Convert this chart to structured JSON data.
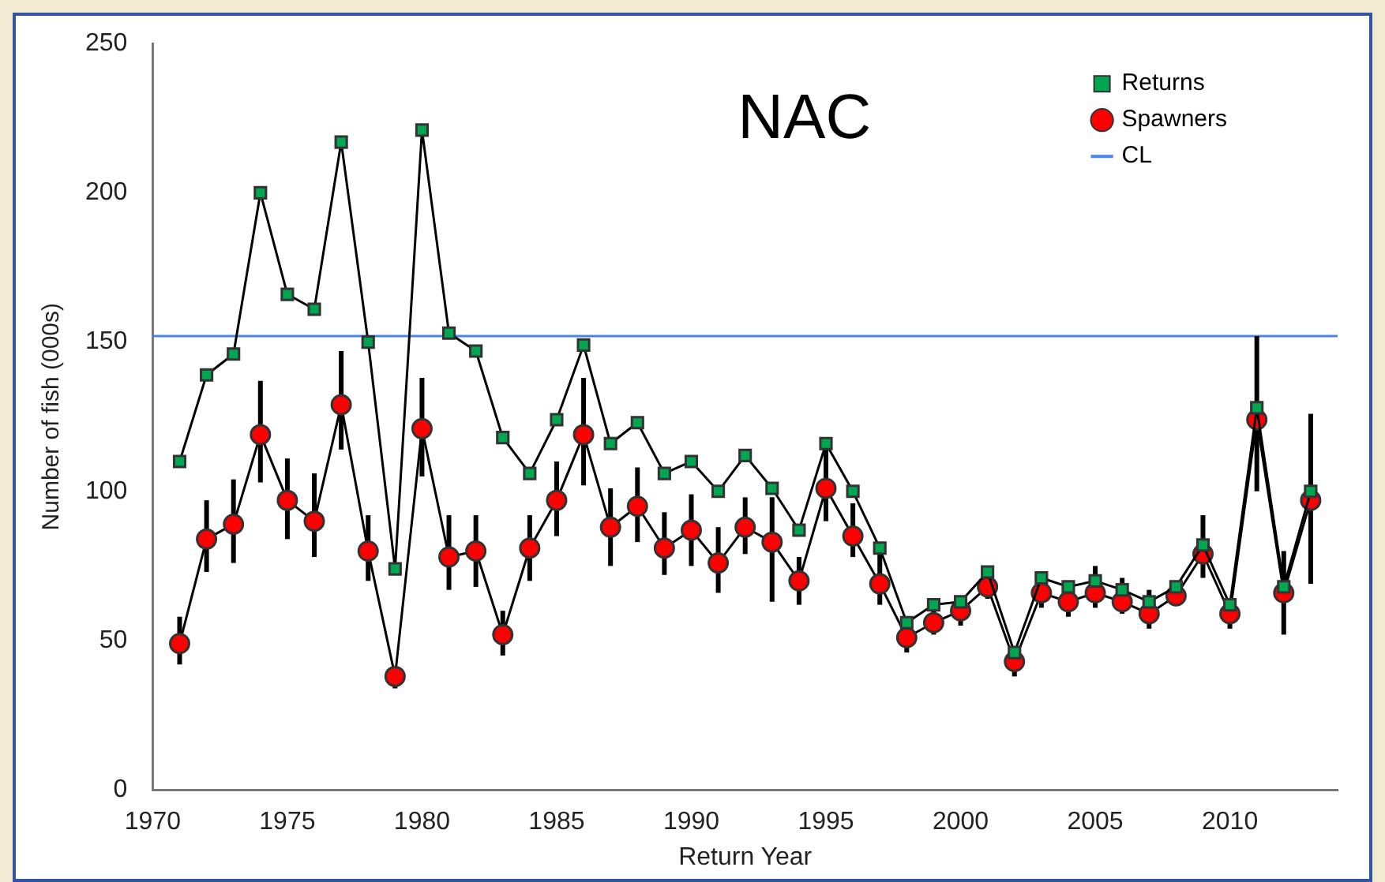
{
  "chart_data": {
    "type": "line",
    "xlabel": "Return Year",
    "ylabel": "Number of fish (000s)",
    "annotations": [
      "NAC"
    ],
    "x": [
      1971,
      1972,
      1973,
      1974,
      1975,
      1976,
      1977,
      1978,
      1979,
      1980,
      1981,
      1982,
      1983,
      1984,
      1985,
      1986,
      1987,
      1988,
      1989,
      1990,
      1991,
      1992,
      1993,
      1994,
      1995,
      1996,
      1997,
      1998,
      1999,
      2000,
      2001,
      2002,
      2003,
      2004,
      2005,
      2006,
      2007,
      2008,
      2009,
      2010,
      2011,
      2012,
      2013
    ],
    "series": [
      {
        "name": "Returns",
        "color": "#00a650",
        "marker": "square",
        "values": [
          110,
          139,
          146,
          200,
          166,
          161,
          217,
          150,
          74,
          221,
          153,
          147,
          118,
          106,
          124,
          149,
          116,
          123,
          106,
          110,
          100,
          112,
          101,
          87,
          116,
          100,
          81,
          56,
          62,
          63,
          73,
          46,
          71,
          68,
          70,
          67,
          63,
          68,
          82,
          62,
          128,
          68,
          100
        ]
      },
      {
        "name": "Spawners",
        "color": "#ff0000",
        "marker": "circle",
        "values": [
          49,
          84,
          89,
          119,
          97,
          90,
          129,
          80,
          38,
          121,
          78,
          80,
          52,
          81,
          97,
          119,
          88,
          95,
          81,
          87,
          76,
          88,
          83,
          70,
          101,
          85,
          69,
          51,
          56,
          60,
          68,
          43,
          66,
          63,
          66,
          63,
          59,
          65,
          79,
          59,
          124,
          66,
          97
        ],
        "errors": [
          [
            42,
            58
          ],
          [
            73,
            97
          ],
          [
            76,
            104
          ],
          [
            103,
            137
          ],
          [
            84,
            111
          ],
          [
            78,
            106
          ],
          [
            114,
            147
          ],
          [
            70,
            92
          ],
          [
            34,
            41
          ],
          [
            105,
            138
          ],
          [
            67,
            92
          ],
          [
            68,
            92
          ],
          [
            45,
            60
          ],
          [
            70,
            92
          ],
          [
            85,
            110
          ],
          [
            102,
            138
          ],
          [
            75,
            101
          ],
          [
            83,
            108
          ],
          [
            72,
            93
          ],
          [
            75,
            99
          ],
          [
            66,
            88
          ],
          [
            79,
            98
          ],
          [
            63,
            98
          ],
          [
            62,
            78
          ],
          [
            90,
            115
          ],
          [
            78,
            96
          ],
          [
            62,
            79
          ],
          [
            46,
            56
          ],
          [
            52,
            62
          ],
          [
            55,
            64
          ],
          [
            64,
            73
          ],
          [
            38,
            47
          ],
          [
            61,
            71
          ],
          [
            58,
            68
          ],
          [
            61,
            75
          ],
          [
            59,
            71
          ],
          [
            54,
            67
          ],
          [
            62,
            70
          ],
          [
            71,
            92
          ],
          [
            54,
            64
          ],
          [
            100,
            152
          ],
          [
            52,
            80
          ],
          [
            69,
            126
          ]
        ]
      }
    ],
    "ref_lines": [
      {
        "axis": "y",
        "value": 152,
        "label": "CL",
        "color": "#4a86e8"
      }
    ],
    "xlim": [
      1970,
      2014
    ],
    "xticks": [
      1970,
      1975,
      1980,
      1985,
      1990,
      1995,
      2000,
      2005,
      2010
    ],
    "ylim": [
      0,
      250
    ],
    "yticks": [
      0,
      50,
      100,
      150,
      200,
      250
    ],
    "grid": false,
    "legend": "top right",
    "line_style": "solid"
  }
}
